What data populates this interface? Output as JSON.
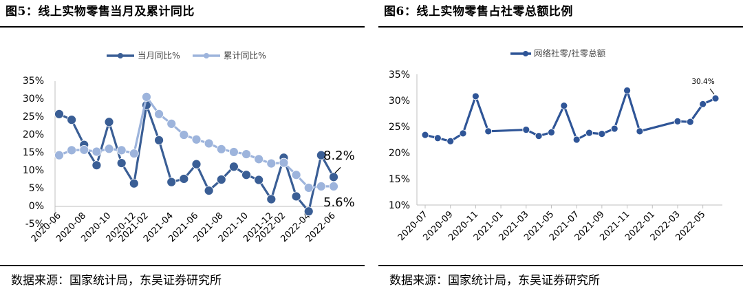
{
  "panels": {
    "left": {
      "title": "图5：线上实物零售当月及累计同比",
      "source": "数据来源：国家统计局，东吴证券研究所"
    },
    "right": {
      "title": "图6：线上实物零售占社零总额比例",
      "source": "数据来源：国家统计局，东吴证券研究所"
    }
  },
  "colors": {
    "series_dark": "#3a5e95",
    "series_light": "#9db4dc",
    "series_right": "#2f5597",
    "axis": "#bfbfbf"
  },
  "chart_data": [
    {
      "type": "line",
      "x": [
        "2020-06",
        "2020-07",
        "2020-08",
        "2020-09",
        "2020-10",
        "2020-11",
        "2020-12",
        "2021-02",
        "2021-03",
        "2021-04",
        "2021-05",
        "2021-06",
        "2021-07",
        "2021-08",
        "2021-09",
        "2021-10",
        "2021-11",
        "2021-12",
        "2022-02",
        "2022-03",
        "2022-04",
        "2022-05",
        "2022-06"
      ],
      "x_ticks": [
        "2020-06",
        "2020-08",
        "2020-10",
        "2020-12",
        "2021-02",
        "2021-04",
        "2021-06",
        "2021-08",
        "2021-10",
        "2021-12",
        "2022-02",
        "2022-04",
        "2022-06"
      ],
      "series": [
        {
          "name": "当月同比%",
          "values": [
            25.8,
            24.2,
            17.2,
            11.5,
            23.6,
            12.1,
            6.4,
            28.3,
            18.5,
            6.8,
            7.7,
            11.8,
            4.4,
            7.5,
            11.1,
            8.8,
            7.4,
            2.0,
            13.6,
            2.8,
            -1.4,
            14.3,
            8.2
          ]
        },
        {
          "name": "累计同比%",
          "values": [
            14.3,
            15.7,
            15.8,
            15.3,
            16.1,
            15.7,
            14.8,
            30.6,
            25.8,
            23.1,
            20.0,
            18.7,
            17.6,
            16.0,
            15.2,
            14.6,
            13.2,
            12.0,
            12.2,
            8.8,
            5.2,
            5.6,
            5.6
          ]
        }
      ],
      "ylim": [
        -5,
        35
      ],
      "y_ticks": [
        "-5%",
        "0%",
        "5%",
        "10%",
        "15%",
        "20%",
        "25%",
        "30%",
        "35%"
      ],
      "annotations": [
        "8.2%",
        "5.6%"
      ],
      "legend_position": "top"
    },
    {
      "type": "line",
      "x": [
        "2020-07",
        "2020-08",
        "2020-09",
        "2020-10",
        "2020-11",
        "2020-12",
        "2021-03",
        "2021-04",
        "2021-05",
        "2021-06",
        "2021-07",
        "2021-08",
        "2021-09",
        "2021-10",
        "2021-11",
        "2021-12",
        "2022-03",
        "2022-04",
        "2022-05",
        "2022-06"
      ],
      "x_ticks": [
        "2020-07",
        "2020-09",
        "2020-11",
        "2021-01",
        "2021-03",
        "2021-05",
        "2021-07",
        "2021-09",
        "2021-11",
        "2022-01",
        "2022-03",
        "2022-05"
      ],
      "series": [
        {
          "name": "网络社零/社零总额",
          "values": [
            23.4,
            22.8,
            22.2,
            23.7,
            30.8,
            24.1,
            24.4,
            23.2,
            23.9,
            29.0,
            22.5,
            23.8,
            23.6,
            24.6,
            31.9,
            24.1,
            26.0,
            25.9,
            29.3,
            30.4
          ]
        }
      ],
      "ylim": [
        10,
        35
      ],
      "y_ticks": [
        "10%",
        "15%",
        "20%",
        "25%",
        "30%",
        "35%"
      ],
      "annotations": [
        "30.4%"
      ],
      "legend_position": "top"
    }
  ]
}
